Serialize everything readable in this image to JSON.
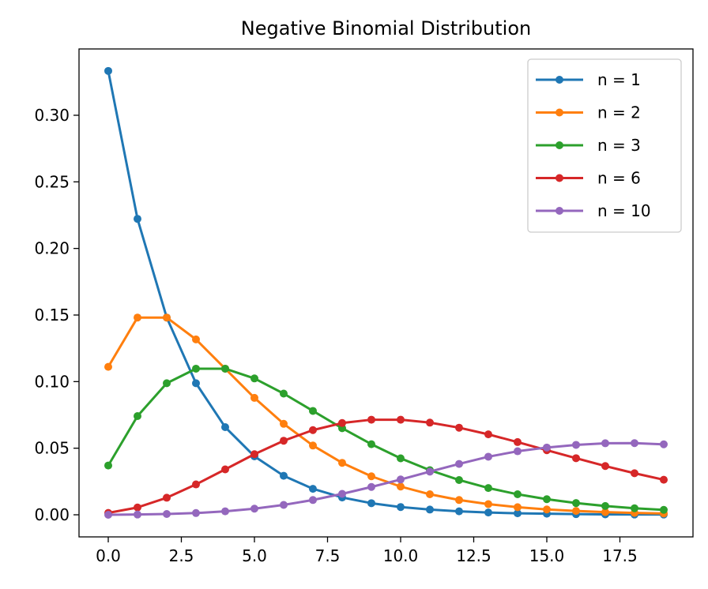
{
  "chart_data": {
    "type": "line",
    "title": "Negative Binomial Distribution",
    "xlabel": "",
    "ylabel": "",
    "xlim": [
      -1.0,
      20.0
    ],
    "ylim": [
      -0.0166,
      0.3498
    ],
    "x_ticks": [
      0.0,
      2.5,
      5.0,
      7.5,
      10.0,
      12.5,
      15.0,
      17.5
    ],
    "x_tick_labels": [
      "0.0",
      "2.5",
      "5.0",
      "7.5",
      "10.0",
      "12.5",
      "15.0",
      "17.5"
    ],
    "y_ticks": [
      0.0,
      0.05,
      0.1,
      0.15,
      0.2,
      0.25,
      0.3
    ],
    "y_tick_labels": [
      "0.00",
      "0.05",
      "0.10",
      "0.15",
      "0.20",
      "0.25",
      "0.30"
    ],
    "grid": false,
    "legend_position": "top-right",
    "x": [
      0,
      1,
      2,
      3,
      4,
      5,
      6,
      7,
      8,
      9,
      10,
      11,
      12,
      13,
      14,
      15,
      16,
      17,
      18,
      19
    ],
    "series": [
      {
        "name": "n = 1",
        "color": "#1f77b4",
        "values": [
          0.3333,
          0.2222,
          0.1481,
          0.0988,
          0.0658,
          0.0439,
          0.0293,
          0.0195,
          0.013,
          0.0087,
          0.0058,
          0.0039,
          0.0026,
          0.0017,
          0.0011,
          0.0008,
          0.0005,
          0.0003,
          0.0002,
          0.0002
        ]
      },
      {
        "name": "n = 2",
        "color": "#ff7f0e",
        "values": [
          0.1111,
          0.1481,
          0.1481,
          0.1317,
          0.1097,
          0.0878,
          0.0683,
          0.052,
          0.039,
          0.0289,
          0.0212,
          0.0154,
          0.0111,
          0.008,
          0.0057,
          0.004,
          0.0029,
          0.002,
          0.0014,
          0.001
        ]
      },
      {
        "name": "n = 3",
        "color": "#2ca02c",
        "values": [
          0.037,
          0.0741,
          0.0988,
          0.1097,
          0.1097,
          0.1024,
          0.091,
          0.078,
          0.065,
          0.053,
          0.0424,
          0.0335,
          0.0261,
          0.0201,
          0.0154,
          0.0117,
          0.0088,
          0.0066,
          0.0049,
          0.0037
        ]
      },
      {
        "name": "n = 6",
        "color": "#d62728",
        "values": [
          0.0014,
          0.0055,
          0.0128,
          0.0228,
          0.0341,
          0.0455,
          0.0556,
          0.0636,
          0.0689,
          0.0714,
          0.0714,
          0.0692,
          0.0654,
          0.0604,
          0.0546,
          0.0485,
          0.0425,
          0.0366,
          0.0312,
          0.0263
        ]
      },
      {
        "name": "n = 10",
        "color": "#9467bd",
        "values": [
          0.0,
          0.0002,
          0.0006,
          0.0013,
          0.0026,
          0.0046,
          0.0074,
          0.0111,
          0.0157,
          0.0209,
          0.0265,
          0.0324,
          0.0382,
          0.0436,
          0.0477,
          0.0505,
          0.0525,
          0.0537,
          0.0538,
          0.0529
        ]
      }
    ]
  }
}
